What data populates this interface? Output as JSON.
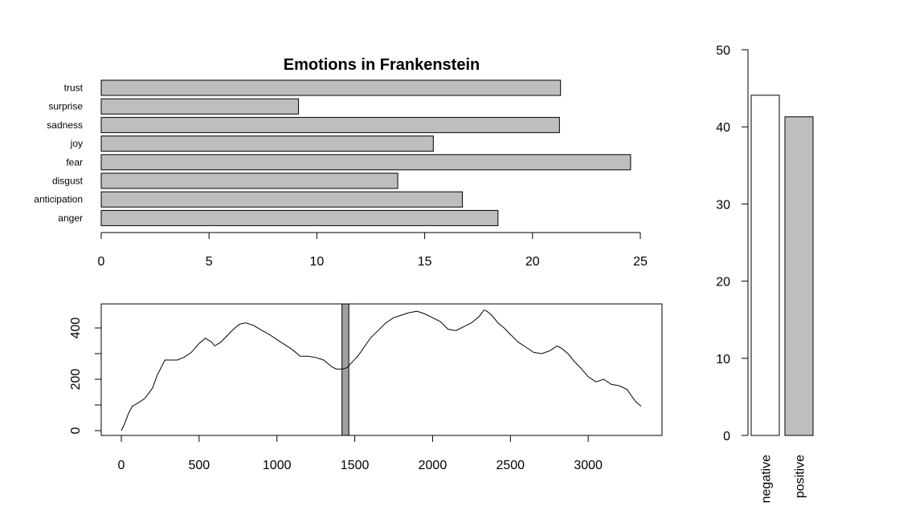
{
  "chart_data": [
    {
      "type": "bar",
      "orientation": "horizontal",
      "title": "Emotions in Frankenstein",
      "categories": [
        "trust",
        "surprise",
        "sadness",
        "joy",
        "fear",
        "disgust",
        "anticipation",
        "anger"
      ],
      "values": [
        21.3,
        9.15,
        21.25,
        15.4,
        24.55,
        13.75,
        16.75,
        18.4
      ],
      "xlim": [
        0,
        25
      ],
      "xticks": [
        0,
        5,
        10,
        15,
        20,
        25
      ],
      "bar_color": "#bebebe"
    },
    {
      "type": "line",
      "xlim": [
        0,
        3340
      ],
      "ylim": [
        0,
        470
      ],
      "xticks": [
        0,
        500,
        1000,
        1500,
        2000,
        2500,
        3000
      ],
      "yticks": [
        0,
        200,
        400
      ],
      "x": [
        0,
        20,
        45,
        70,
        100,
        150,
        200,
        230,
        280,
        320,
        360,
        400,
        450,
        500,
        540,
        580,
        600,
        640,
        680,
        720,
        760,
        800,
        850,
        890,
        920,
        950,
        1000,
        1050,
        1100,
        1150,
        1200,
        1250,
        1300,
        1350,
        1380,
        1420,
        1450,
        1480,
        1520,
        1560,
        1600,
        1650,
        1700,
        1750,
        1800,
        1850,
        1900,
        1950,
        2000,
        2050,
        2100,
        2150,
        2200,
        2250,
        2300,
        2330,
        2350,
        2380,
        2420,
        2460,
        2500,
        2550,
        2600,
        2650,
        2700,
        2750,
        2800,
        2830,
        2870,
        2910,
        2950,
        3000,
        3050,
        3100,
        3150,
        3200,
        3250,
        3290,
        3310,
        3340
      ],
      "y": [
        0,
        25,
        65,
        95,
        105,
        125,
        165,
        215,
        275,
        275,
        275,
        285,
        305,
        340,
        360,
        345,
        330,
        345,
        370,
        395,
        415,
        420,
        410,
        395,
        385,
        375,
        355,
        335,
        315,
        290,
        290,
        285,
        275,
        250,
        240,
        240,
        245,
        265,
        290,
        325,
        360,
        390,
        420,
        440,
        450,
        460,
        465,
        455,
        440,
        425,
        395,
        390,
        405,
        420,
        445,
        470,
        465,
        450,
        420,
        400,
        375,
        345,
        325,
        305,
        300,
        310,
        330,
        320,
        300,
        270,
        245,
        210,
        190,
        200,
        180,
        175,
        160,
        125,
        110,
        95
      ],
      "shaded_band": [
        1418,
        1462
      ],
      "band_color": "#a0a0a0"
    },
    {
      "type": "bar",
      "categories": [
        "negative",
        "positive"
      ],
      "values": [
        44.1,
        41.3
      ],
      "ylim": [
        0,
        50
      ],
      "yticks": [
        0,
        10,
        20,
        30,
        40,
        50
      ],
      "bar_colors": [
        "#ffffff",
        "#bebebe"
      ]
    }
  ]
}
